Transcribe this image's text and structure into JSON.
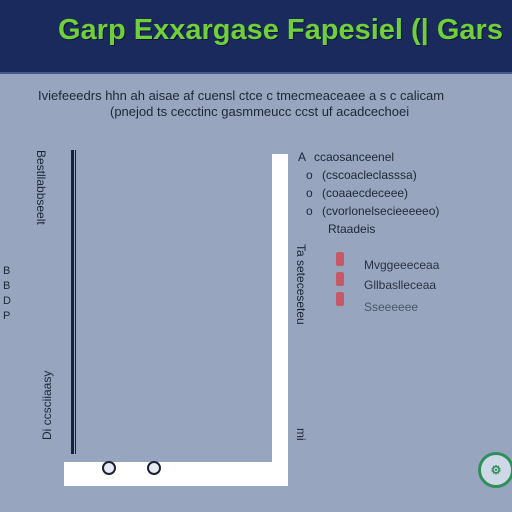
{
  "header": {
    "title": "Garp Exxargase Fapesiel (| Gars"
  },
  "subtitle": {
    "line1": "Iviefeeedrs hhn ah aisae af cuensl ctce c  tmecmeaceaee a  s  c  calicam",
    "line2": "(pnejod ts cecctinc gasmmeucc ccst uf  acadcechoei"
  },
  "left_letters": [
    "B",
    "B",
    "D",
    "P"
  ],
  "vertical_labels": {
    "left": "Di ccsciiaasy",
    "left2": "Bestllabbseelt",
    "right": "Ta seteceseteu",
    "right2": "mi"
  },
  "legend": {
    "items": [
      {
        "bullet": "A",
        "label": "ccaosanceenel"
      },
      {
        "bullet": "o",
        "label": "(cscoacleclasssa)"
      },
      {
        "bullet": "o",
        "label": "(coaaecdeceee)"
      },
      {
        "bullet": "o",
        "label": "(cvorlonelsecieeeeeo)"
      },
      {
        "bullet": "",
        "label": "Rtaadeis"
      }
    ]
  },
  "red_items": [
    {
      "label": "Mvggeeeceaa"
    },
    {
      "label": "Gllbaslleceaa"
    },
    {
      "label": "Sseeeeee"
    }
  ],
  "markers": [
    "marker-1",
    "marker-2"
  ],
  "logo": {
    "icon": "gear-icon",
    "text": "⚙"
  },
  "colors": {
    "header_bg": "#1b2a5c",
    "title": "#6fd03a",
    "background": "#97a6be",
    "accent_red": "#c35a66"
  }
}
